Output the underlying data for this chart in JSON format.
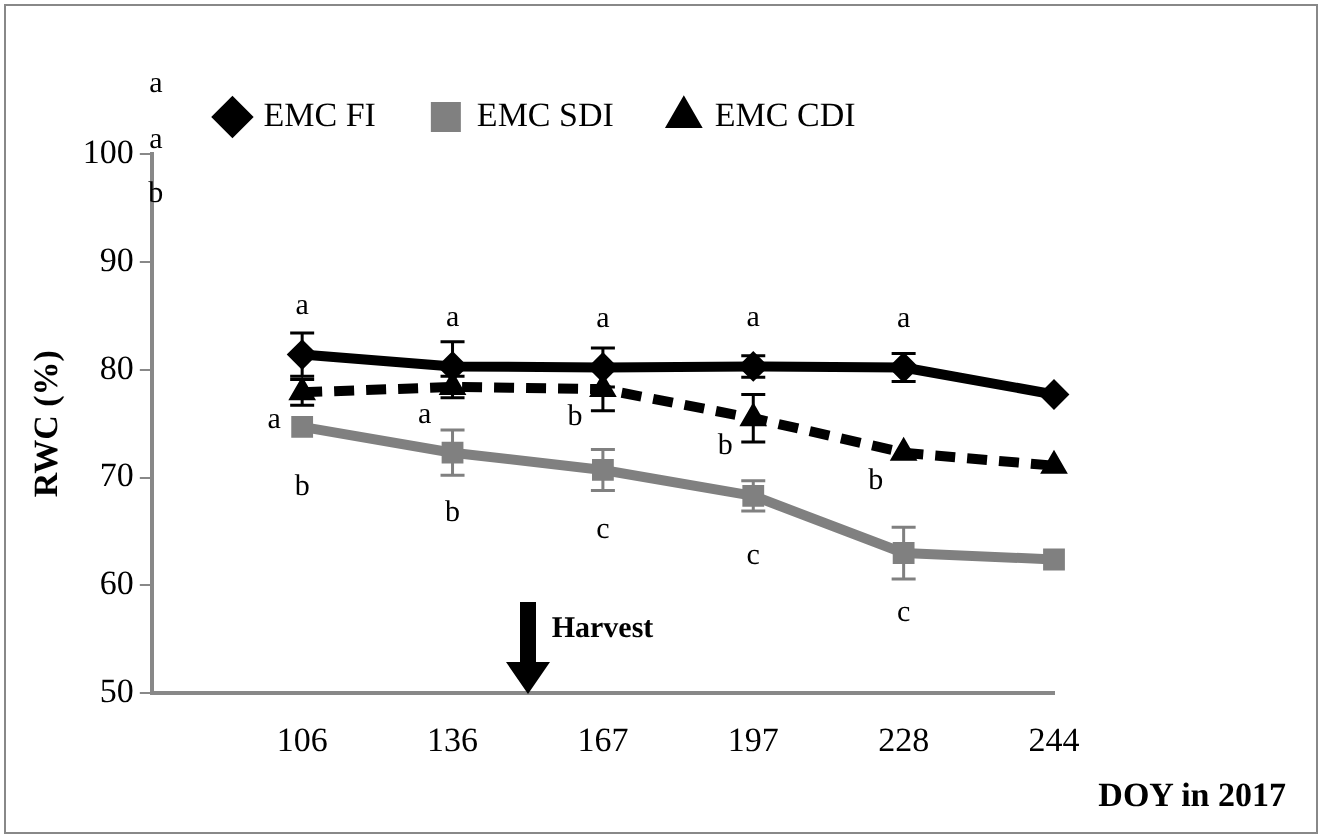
{
  "chart_data": {
    "type": "line",
    "ylabel": "RWC (%)",
    "xlabel": "DOY in 2017",
    "categories": [
      null,
      "106",
      "136",
      "167",
      "197",
      "228",
      "244"
    ],
    "ylim": [
      50,
      100
    ],
    "yticks": [
      50,
      60,
      70,
      80,
      90,
      100
    ],
    "grid": false,
    "legend": "top",
    "series": [
      {
        "name": "EMC FI",
        "color": "#000000",
        "marker": "diamond",
        "line_style": "solid",
        "values": [
          null,
          81.4,
          80.3,
          80.2,
          80.3,
          80.2,
          77.7
        ],
        "errors": [
          null,
          2.0,
          2.3,
          1.8,
          1.0,
          1.3,
          null
        ]
      },
      {
        "name": "EMC SDI",
        "color": "#808080",
        "marker": "square",
        "line_style": "solid",
        "values": [
          null,
          74.7,
          72.3,
          70.7,
          68.3,
          63.0,
          62.4
        ],
        "errors": [
          null,
          null,
          2.1,
          1.9,
          1.4,
          2.4,
          null
        ]
      },
      {
        "name": "EMC CDI",
        "color": "#000000",
        "marker": "triangle",
        "line_style": "dashed",
        "values": [
          null,
          77.9,
          78.4,
          78.2,
          75.5,
          72.3,
          71.1
        ],
        "errors": [
          null,
          1.2,
          1.0,
          2.0,
          2.2,
          null,
          null
        ]
      }
    ],
    "annotations": [
      "Harvest",
      "a",
      "a",
      "b",
      "a",
      "a",
      "a",
      "a",
      "a",
      "b",
      "b",
      "c",
      "c",
      "c",
      "a",
      "a",
      "b",
      "b",
      "b"
    ]
  }
}
